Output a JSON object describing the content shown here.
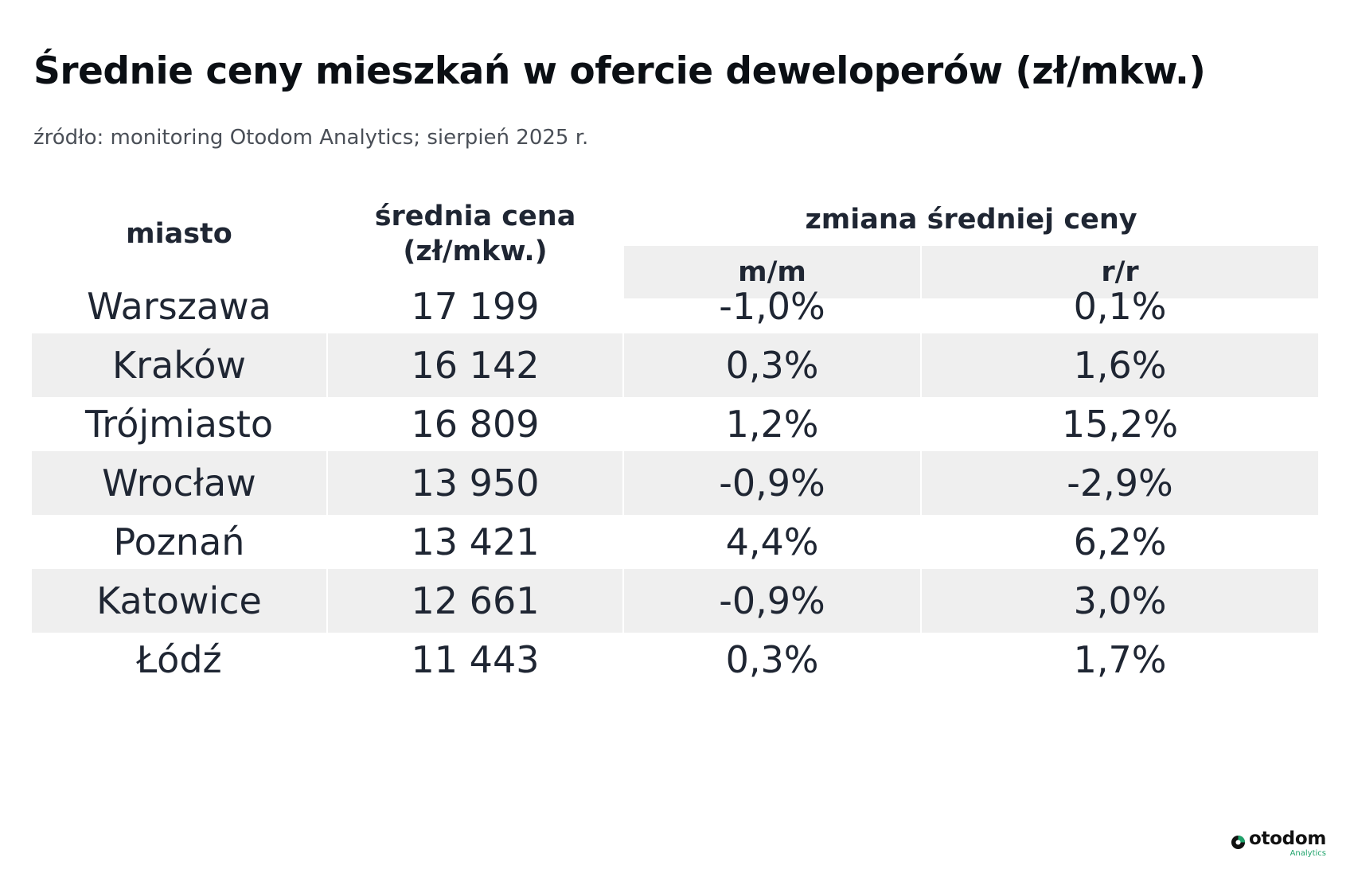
{
  "title": "Średnie ceny mieszkań w ofercie deweloperów (zł/mkw.)",
  "subtitle": "źródło: monitoring Otodom Analytics; sierpień 2025 r.",
  "header": {
    "city": "miasto",
    "price_line1": "średnia cena",
    "price_line2": "(zł/mkw.)",
    "change_group": "zmiana średniej ceny",
    "mm": "m/m",
    "rr": "r/r"
  },
  "chart_data": {
    "type": "table",
    "title": "Średnie ceny mieszkań w ofercie deweloperów (zł/mkw.)",
    "columns": [
      "miasto",
      "średnia cena (zł/mkw.)",
      "m/m",
      "r/r"
    ],
    "rows": [
      {
        "city": "Warszawa",
        "price": "17 199",
        "mm": "-1,0%",
        "rr": "0,1%"
      },
      {
        "city": "Kraków",
        "price": "16 142",
        "mm": "0,3%",
        "rr": "1,6%"
      },
      {
        "city": "Trójmiasto",
        "price": "16 809",
        "mm": "1,2%",
        "rr": "15,2%"
      },
      {
        "city": "Wrocław",
        "price": "13 950",
        "mm": "-0,9%",
        "rr": "-2,9%"
      },
      {
        "city": "Poznań",
        "price": "13 421",
        "mm": "4,4%",
        "rr": "6,2%"
      },
      {
        "city": "Katowice",
        "price": "12 661",
        "mm": "-0,9%",
        "rr": "3,0%"
      },
      {
        "city": "Łódź",
        "price": "11 443",
        "mm": "0,3%",
        "rr": "1,7%"
      }
    ]
  },
  "logo": {
    "word": "otodom",
    "sub": "Analytics",
    "accent_color": "#1fa36b",
    "icon": "otodom-logo-icon"
  },
  "colors": {
    "row_shade": "#efefef",
    "text": "#1f2633"
  }
}
